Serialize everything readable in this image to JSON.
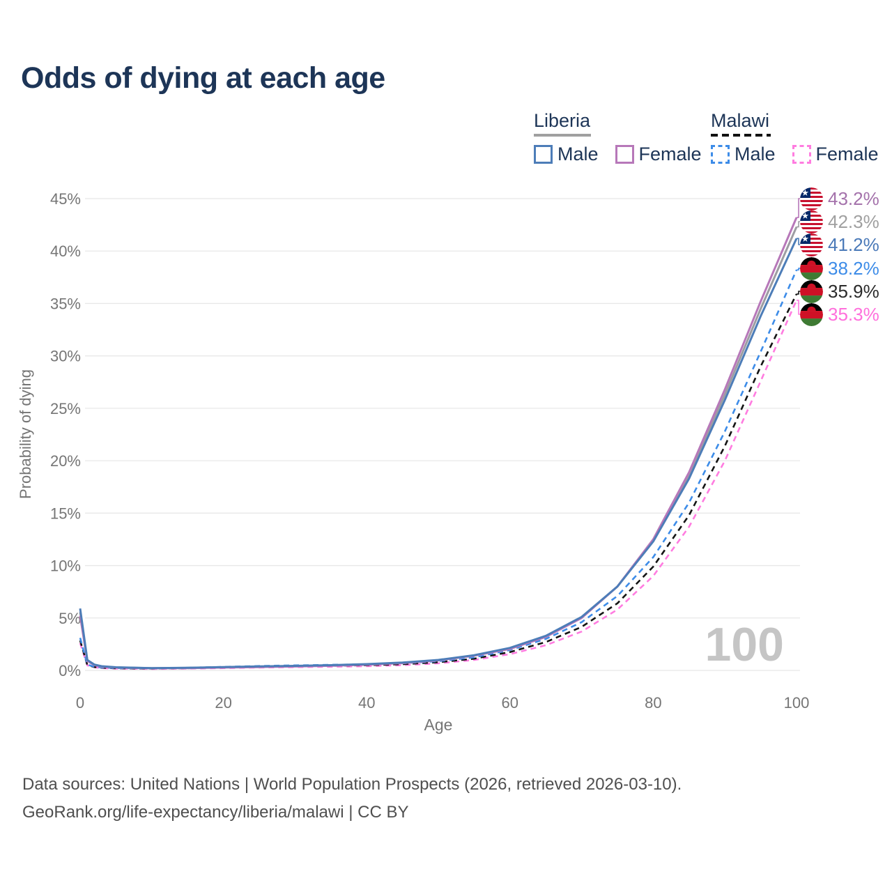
{
  "title": "Odds of dying at each age",
  "watermark": "100",
  "legend": {
    "liberia": {
      "label": "Liberia",
      "male": "Male",
      "female": "Female"
    },
    "malawi": {
      "label": "Malawi",
      "male": "Male",
      "female": "Female"
    }
  },
  "footer": {
    "line1": "Data sources: United Nations | World Population Prospects (2026, retrieved 2026-03-10).",
    "line2": "GeoRank.org/life-expectancy/liberia/malawi | CC BY"
  },
  "colors": {
    "title_text": "#1d3557",
    "axis_text": "#757575",
    "grid": "#e8e8e8",
    "watermark": "#c5c5c5"
  },
  "chart_data": {
    "type": "line",
    "title": "Odds of dying at each age",
    "xlabel": "Age",
    "ylabel": "Probability of dying",
    "xlim": [
      0,
      100
    ],
    "ylim": [
      0,
      45
    ],
    "x_ticks": [
      0,
      20,
      40,
      60,
      80,
      100
    ],
    "y_ticks_pct": [
      0,
      5,
      10,
      15,
      20,
      25,
      30,
      35,
      40,
      45
    ],
    "grid": true,
    "legend_position": "top-right",
    "ages": [
      0,
      1,
      2,
      3,
      5,
      10,
      15,
      20,
      25,
      30,
      35,
      40,
      45,
      50,
      55,
      60,
      65,
      70,
      75,
      80,
      85,
      90,
      95,
      100
    ],
    "series": [
      {
        "name": "Liberia Female",
        "country": "Liberia",
        "sex": "Female",
        "color": "#b778b9",
        "label_color": "#a472ab",
        "dashed": false,
        "flag": "liberia",
        "end_label": "43.2%",
        "end_value": 43.2,
        "values": [
          5.2,
          0.9,
          0.5,
          0.35,
          0.27,
          0.2,
          0.22,
          0.27,
          0.32,
          0.37,
          0.44,
          0.54,
          0.7,
          0.95,
          1.4,
          2.05,
          3.2,
          5.0,
          8.0,
          12.5,
          18.9,
          26.8,
          35.2,
          43.2
        ]
      },
      {
        "name": "Liberia Total",
        "country": "Liberia",
        "sex": "Both",
        "color": "#9d9da2",
        "label_color": "#a0a0a0",
        "dashed": false,
        "flag": "liberia",
        "end_label": "42.3%",
        "end_value": 42.3,
        "values": [
          5.55,
          0.95,
          0.52,
          0.38,
          0.28,
          0.21,
          0.24,
          0.3,
          0.35,
          0.4,
          0.47,
          0.57,
          0.72,
          0.97,
          1.42,
          2.1,
          3.25,
          5.05,
          8.0,
          12.4,
          18.6,
          26.3,
          34.5,
          42.3
        ]
      },
      {
        "name": "Liberia Male",
        "country": "Liberia",
        "sex": "Male",
        "color": "#4d7db8",
        "label_color": "#4a79b8",
        "dashed": false,
        "flag": "liberia",
        "end_label": "41.2%",
        "end_value": 41.2,
        "values": [
          5.9,
          1.0,
          0.55,
          0.4,
          0.3,
          0.22,
          0.25,
          0.32,
          0.38,
          0.43,
          0.5,
          0.6,
          0.75,
          1.0,
          1.45,
          2.15,
          3.3,
          5.1,
          8.0,
          12.3,
          18.3,
          25.8,
          33.8,
          41.2
        ]
      },
      {
        "name": "Malawi Male",
        "country": "Malawi",
        "sex": "Male",
        "color": "#3d8ce8",
        "label_color": "#3d8ce8",
        "dashed": true,
        "flag": "malawi",
        "end_label": "38.2%",
        "end_value": 38.2,
        "values": [
          3.1,
          0.55,
          0.35,
          0.28,
          0.22,
          0.2,
          0.25,
          0.33,
          0.42,
          0.48,
          0.53,
          0.58,
          0.68,
          0.88,
          1.25,
          1.95,
          3.0,
          4.6,
          7.1,
          10.8,
          16.0,
          22.8,
          30.4,
          38.2
        ]
      },
      {
        "name": "Malawi Total",
        "country": "Malawi",
        "sex": "Both",
        "color": "#141414",
        "label_color": "#2b2b2b",
        "dashed": true,
        "flag": "malawi",
        "end_label": "35.9%",
        "end_value": 35.9,
        "values": [
          2.85,
          0.52,
          0.32,
          0.25,
          0.2,
          0.17,
          0.21,
          0.28,
          0.35,
          0.4,
          0.44,
          0.49,
          0.59,
          0.78,
          1.12,
          1.75,
          2.7,
          4.15,
          6.4,
          9.9,
          14.8,
          21.4,
          29.0,
          35.9
        ]
      },
      {
        "name": "Malawi Female",
        "country": "Malawi",
        "sex": "Female",
        "color": "#ff7ce0",
        "label_color": "#ff70dc",
        "dashed": true,
        "flag": "malawi",
        "end_label": "35.3%",
        "end_value": 35.3,
        "values": [
          2.6,
          0.48,
          0.3,
          0.22,
          0.17,
          0.14,
          0.17,
          0.22,
          0.27,
          0.31,
          0.35,
          0.4,
          0.5,
          0.68,
          1.0,
          1.55,
          2.4,
          3.7,
          5.8,
          9.0,
          13.7,
          20.0,
          27.6,
          35.3
        ]
      }
    ]
  }
}
